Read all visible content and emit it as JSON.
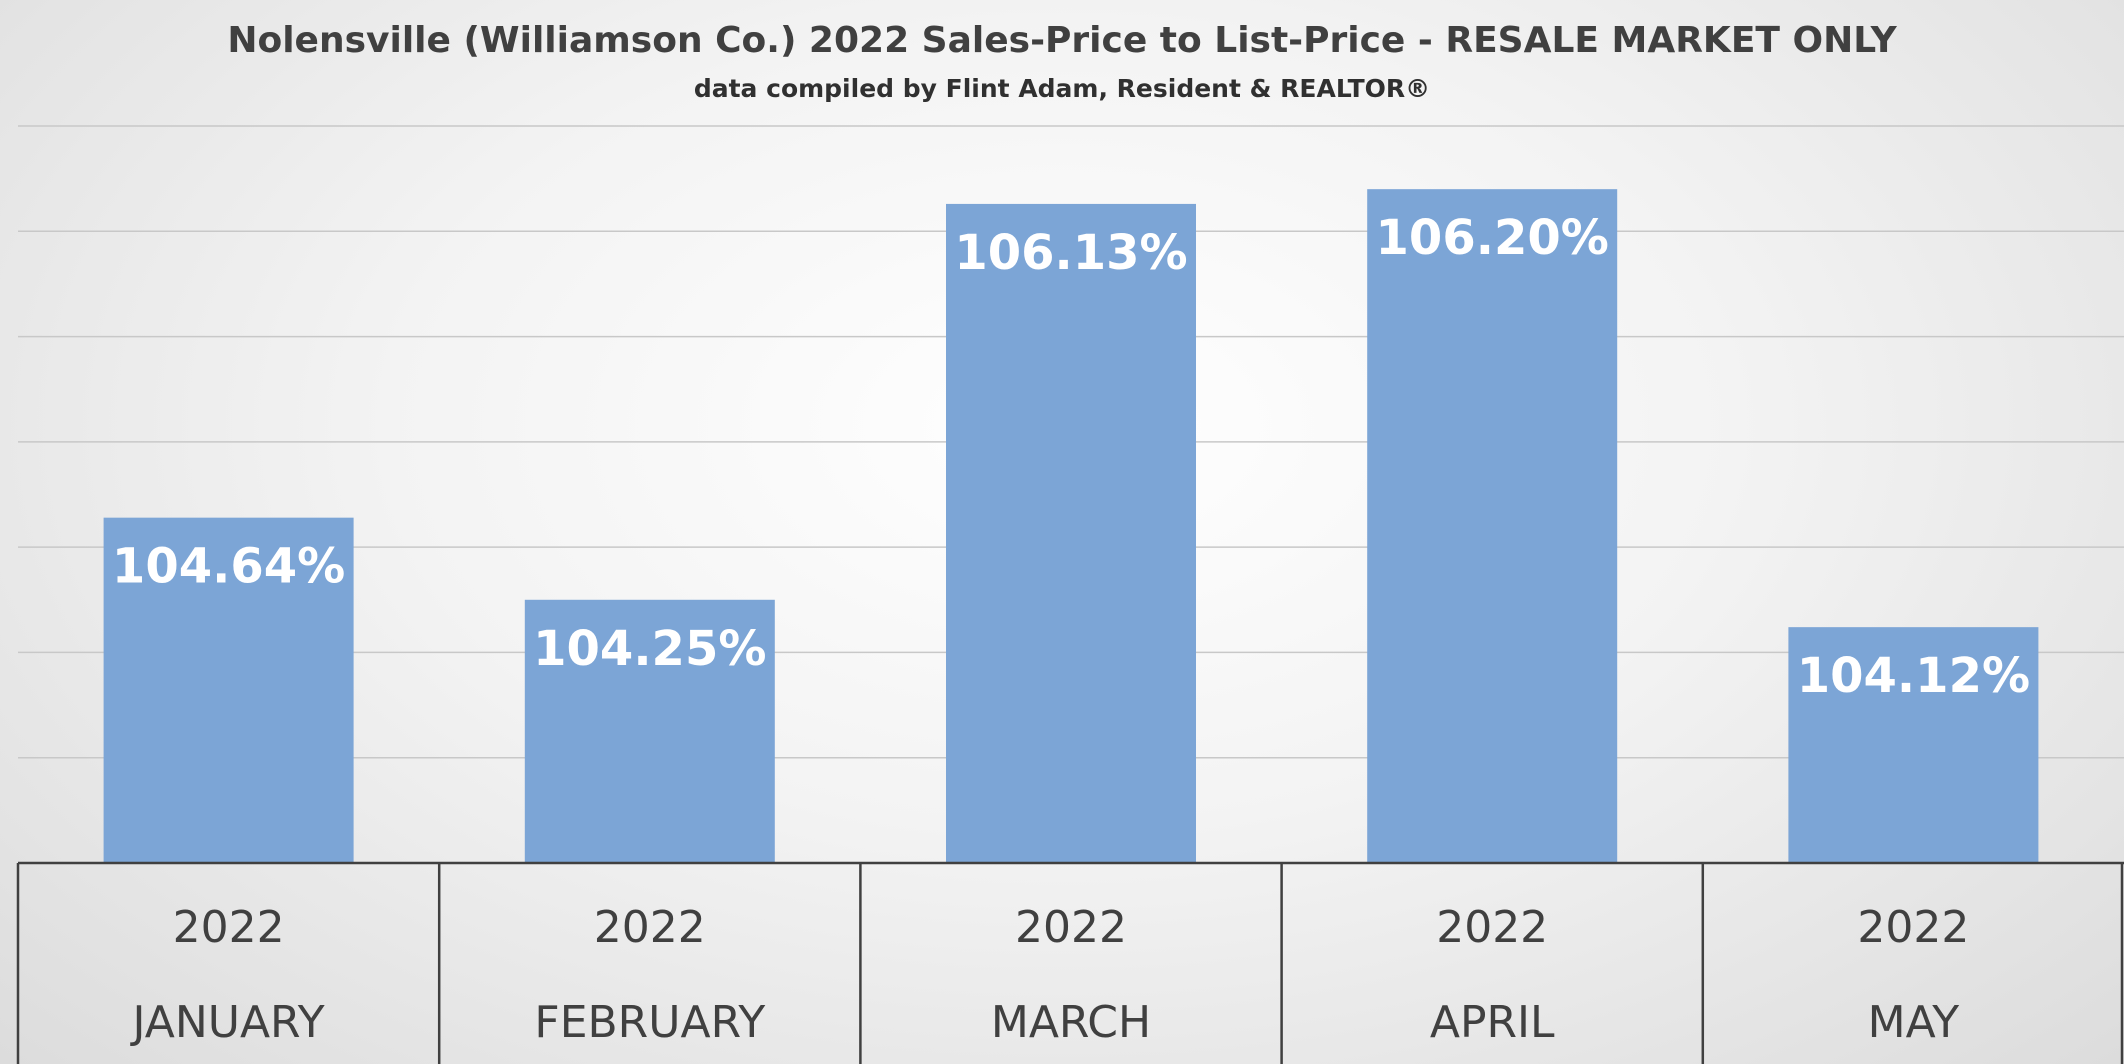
{
  "chart_data": {
    "type": "bar",
    "title": "Nolensville (Williamson Co.) 2022 Sales-Price to List-Price - RESALE MARKET ONLY",
    "subtitle": "data compiled by Flint Adam, Resident & REALTOR®",
    "categories": [
      {
        "year": "2022",
        "month": "JANUARY"
      },
      {
        "year": "2022",
        "month": "FEBRUARY"
      },
      {
        "year": "2022",
        "month": "MARCH"
      },
      {
        "year": "2022",
        "month": "APRIL"
      },
      {
        "year": "2022",
        "month": "MAY"
      }
    ],
    "values": [
      104.64,
      104.25,
      106.13,
      106.2,
      104.12
    ],
    "value_labels": [
      "104.64%",
      "104.25%",
      "106.13%",
      "106.20%",
      "104.12%"
    ],
    "ylim": [
      103.0,
      106.5
    ],
    "grid": true,
    "colors": {
      "bar": "#7ca5d6",
      "gridline": "#c8c8c8",
      "axis": "#404040"
    }
  }
}
